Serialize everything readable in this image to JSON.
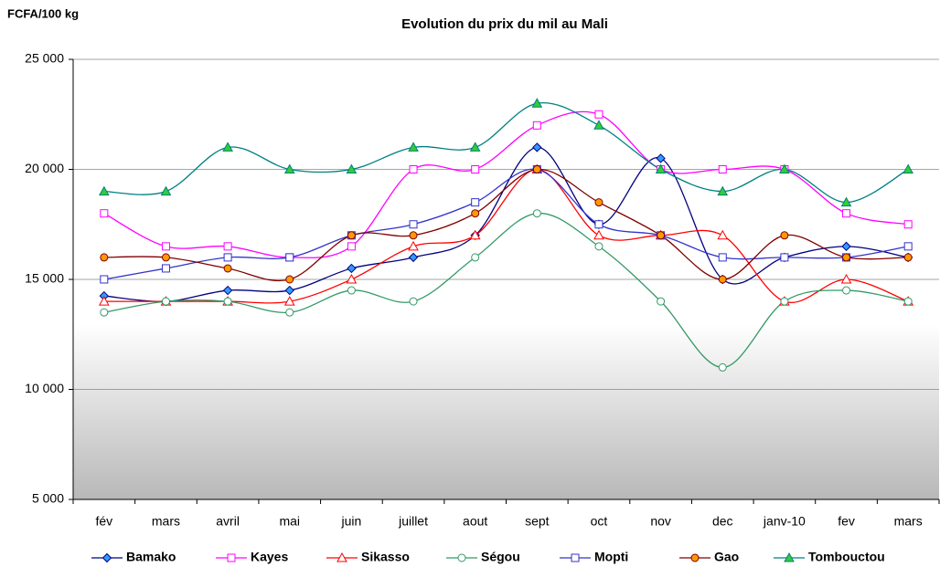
{
  "chart_data": {
    "type": "line",
    "title": "Evolution du prix du mil au Mali",
    "y_label": "FCFA/100 kg",
    "categories": [
      "fév",
      "mars",
      "avril",
      "mai",
      "juin",
      "juillet",
      "aout",
      "sept",
      "oct",
      "nov",
      "dec",
      "janv-10",
      "fev",
      "mars"
    ],
    "ylim": [
      5000,
      25000
    ],
    "yticks": [
      {
        "value": 5000,
        "label": "5 000"
      },
      {
        "value": 10000,
        "label": "10 000"
      },
      {
        "value": 15000,
        "label": "15 000"
      },
      {
        "value": 20000,
        "label": "20 000"
      },
      {
        "value": 25000,
        "label": "25 000"
      }
    ],
    "grid": true,
    "smooth": true,
    "legend": "bottom",
    "series": [
      {
        "name": "Bamako",
        "color": "#000080",
        "marker": "diamond",
        "marker_fill": "#3399ff",
        "values": [
          14250,
          14000,
          14500,
          14500,
          15500,
          16000,
          17000,
          21000,
          17500,
          20500,
          15000,
          16000,
          16500,
          16000
        ]
      },
      {
        "name": "Kayes",
        "color": "#ff00ff",
        "marker": "square",
        "marker_fill": "#ffffff",
        "values": [
          18000,
          16500,
          16500,
          16000,
          16500,
          20000,
          20000,
          22000,
          22500,
          20000,
          20000,
          20000,
          18000,
          17500
        ]
      },
      {
        "name": "Sikasso",
        "color": "#ff0000",
        "marker": "triangle",
        "marker_fill": "#ffffff",
        "values": [
          14000,
          14000,
          14000,
          14000,
          15000,
          16500,
          17000,
          20000,
          17000,
          17000,
          17000,
          14000,
          15000,
          14000
        ]
      },
      {
        "name": "Ségou",
        "color": "#339966",
        "marker": "circle",
        "marker_fill": "#ffffff",
        "values": [
          13500,
          14000,
          14000,
          13500,
          14500,
          14000,
          16000,
          18000,
          16500,
          14000,
          11000,
          14000,
          14500,
          14000
        ]
      },
      {
        "name": "Mopti",
        "color": "#3333cc",
        "marker": "square",
        "marker_fill": "#ffffff",
        "values": [
          15000,
          15500,
          16000,
          16000,
          17000,
          17500,
          18500,
          20000,
          17500,
          17000,
          16000,
          16000,
          16000,
          16500
        ]
      },
      {
        "name": "Gao",
        "color": "#800000",
        "marker": "circle",
        "marker_fill": "#ff9900",
        "values": [
          16000,
          16000,
          15500,
          15000,
          17000,
          17000,
          18000,
          20000,
          18500,
          17000,
          15000,
          17000,
          16000,
          16000
        ]
      },
      {
        "name": "Tombouctou",
        "color": "#008080",
        "marker": "triangle",
        "marker_fill": "#33cc33",
        "values": [
          19000,
          19000,
          21000,
          20000,
          20000,
          21000,
          21000,
          23000,
          22000,
          20000,
          19000,
          20000,
          18500,
          20000
        ]
      }
    ]
  }
}
